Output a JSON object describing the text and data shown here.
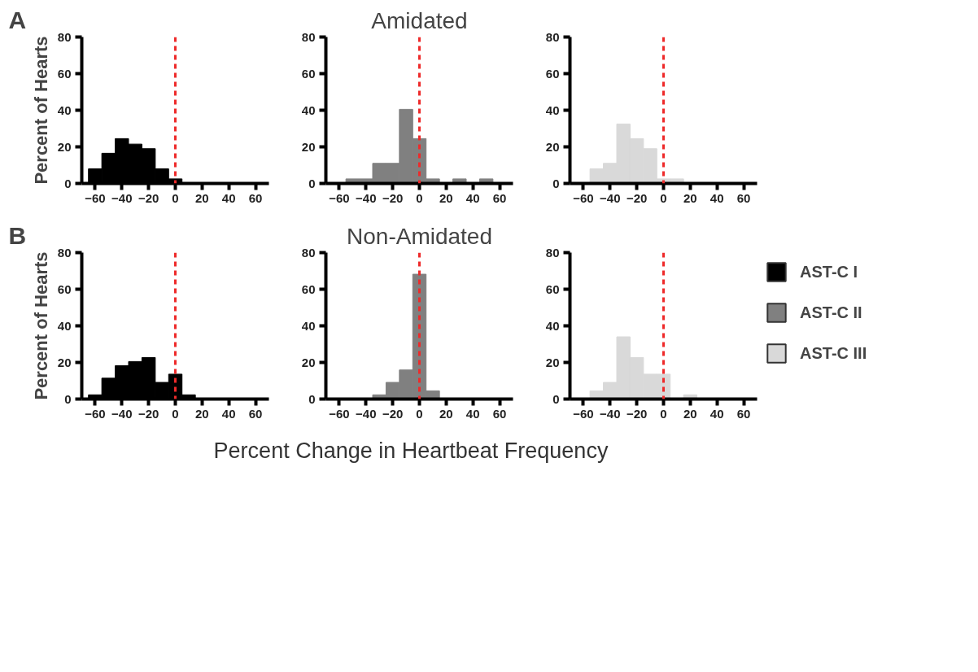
{
  "chart_data": [
    {
      "type": "histogram",
      "title": "A",
      "ylabel": "Percent of Hearts",
      "bins": [
        -65,
        -55,
        -45,
        -35,
        -25,
        -15,
        -5,
        5,
        15,
        25,
        35,
        45,
        55,
        65
      ],
      "series": [
        {
          "color": "#000000",
          "values": [
            8,
            16.5,
            24.5,
            21.5,
            19,
            8,
            2.5,
            0,
            0,
            0,
            0,
            0,
            0
          ]
        }
      ],
      "xlim": [
        -70,
        70
      ],
      "xticks": [
        -60,
        -40,
        -20,
        0,
        20,
        40,
        60
      ],
      "ylim": [
        0,
        80
      ],
      "yticks": [
        0,
        20,
        40,
        60,
        80
      ],
      "grid": false,
      "ref_lines": [
        {
          "axis": "x",
          "value": 0,
          "color": "#ee2a2a",
          "line_style": "dashed"
        }
      ]
    },
    {
      "type": "histogram",
      "title": "Amidated",
      "bins": [
        -65,
        -55,
        -45,
        -35,
        -25,
        -15,
        -5,
        5,
        15,
        25,
        35,
        45,
        55,
        65
      ],
      "series": [
        {
          "color": "#808080",
          "values": [
            0,
            2.5,
            2.5,
            11,
            11,
            40.5,
            24.5,
            2.5,
            0,
            2.5,
            0,
            2.5,
            0
          ]
        }
      ],
      "xlim": [
        -70,
        70
      ],
      "xticks": [
        -60,
        -40,
        -20,
        0,
        20,
        40,
        60
      ],
      "ylim": [
        0,
        80
      ],
      "yticks": [
        0,
        20,
        40,
        60,
        80
      ],
      "grid": false,
      "ref_lines": [
        {
          "axis": "x",
          "value": 0,
          "color": "#ee2a2a",
          "line_style": "dashed"
        }
      ]
    },
    {
      "type": "histogram",
      "bins": [
        -65,
        -55,
        -45,
        -35,
        -25,
        -15,
        -5,
        5,
        15,
        25,
        35,
        45,
        55,
        65
      ],
      "series": [
        {
          "color": "#d9d9d9",
          "values": [
            0,
            8,
            11,
            32.5,
            24.5,
            19,
            2.5,
            2.5,
            0,
            0,
            0,
            0,
            0
          ]
        }
      ],
      "xlim": [
        -70,
        70
      ],
      "xticks": [
        -60,
        -40,
        -20,
        0,
        20,
        40,
        60
      ],
      "ylim": [
        0,
        80
      ],
      "yticks": [
        0,
        20,
        40,
        60,
        80
      ],
      "grid": false,
      "ref_lines": [
        {
          "axis": "x",
          "value": 0,
          "color": "#ee2a2a",
          "line_style": "dashed"
        }
      ]
    },
    {
      "type": "histogram",
      "title": "B",
      "ylabel": "Percent of Hearts",
      "bins": [
        -65,
        -55,
        -45,
        -35,
        -25,
        -15,
        -5,
        5,
        15,
        25,
        35,
        45,
        55,
        65
      ],
      "series": [
        {
          "name": "AST-C I",
          "color": "#000000",
          "values": [
            2.3,
            11.4,
            18.2,
            20.5,
            22.7,
            9.1,
            13.6,
            2.3,
            0,
            0,
            0,
            0,
            0
          ]
        }
      ],
      "xlim": [
        -70,
        70
      ],
      "xticks": [
        -60,
        -40,
        -20,
        0,
        20,
        40,
        60
      ],
      "ylim": [
        0,
        80
      ],
      "yticks": [
        0,
        20,
        40,
        60,
        80
      ],
      "grid": false,
      "ref_lines": [
        {
          "axis": "x",
          "value": 0,
          "color": "#ee2a2a",
          "line_style": "dashed"
        }
      ]
    },
    {
      "type": "histogram",
      "title": "Non-Amidated",
      "xlabel": "Percent Change in Heartbeat Frequency",
      "bins": [
        -65,
        -55,
        -45,
        -35,
        -25,
        -15,
        -5,
        5,
        15,
        25,
        35,
        45,
        55,
        65
      ],
      "series": [
        {
          "name": "AST-C II",
          "color": "#808080",
          "values": [
            0,
            0,
            0,
            2.3,
            9.1,
            15.9,
            68.2,
            4.5,
            0,
            0,
            0,
            0,
            0
          ]
        }
      ],
      "xlim": [
        -70,
        70
      ],
      "xticks": [
        -60,
        -40,
        -20,
        0,
        20,
        40,
        60
      ],
      "ylim": [
        0,
        80
      ],
      "yticks": [
        0,
        20,
        40,
        60,
        80
      ],
      "grid": false,
      "ref_lines": [
        {
          "axis": "x",
          "value": 0,
          "color": "#ee2a2a",
          "line_style": "dashed"
        }
      ]
    },
    {
      "type": "histogram",
      "legend": "right",
      "bins": [
        -65,
        -55,
        -45,
        -35,
        -25,
        -15,
        -5,
        5,
        15,
        25,
        35,
        45,
        55,
        65
      ],
      "series": [
        {
          "name": "AST-C III",
          "color": "#d9d9d9",
          "values": [
            0,
            4.5,
            9.1,
            34,
            22.7,
            13.6,
            13.6,
            0,
            2.3,
            0,
            0,
            0,
            0
          ]
        }
      ],
      "xlim": [
        -70,
        70
      ],
      "xticks": [
        -60,
        -40,
        -20,
        0,
        20,
        40,
        60
      ],
      "ylim": [
        0,
        80
      ],
      "yticks": [
        0,
        20,
        40,
        60,
        80
      ],
      "grid": false,
      "ref_lines": [
        {
          "axis": "x",
          "value": 0,
          "color": "#ee2a2a",
          "line_style": "dashed"
        }
      ]
    }
  ]
}
